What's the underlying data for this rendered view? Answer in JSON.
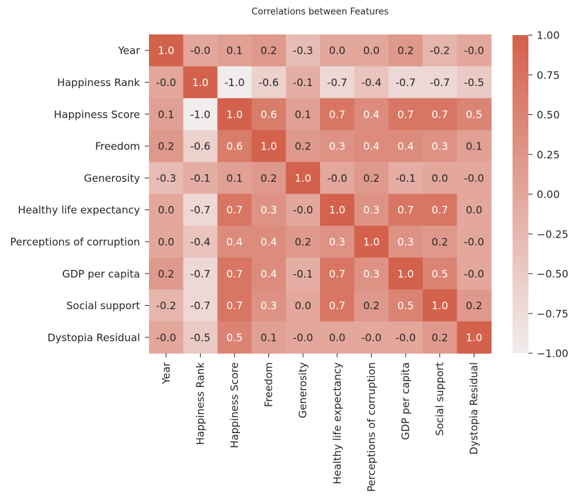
{
  "chart_data": {
    "type": "heatmap",
    "title": "Correlations between Features",
    "rows": [
      "Year",
      "Happiness Rank",
      "Happiness Score",
      "Freedom",
      "Generosity",
      "Healthy life expectancy",
      "Perceptions of corruption",
      "GDP per capita",
      "Social support",
      "Dystopia Residual"
    ],
    "columns": [
      "Year",
      "Happiness Rank",
      "Happiness Score",
      "Freedom",
      "Generosity",
      "Healthy life expectancy",
      "Perceptions of corruption",
      "GDP per capita",
      "Social support",
      "Dystopia Residual"
    ],
    "values": [
      [
        1.0,
        -0.0,
        0.1,
        0.2,
        -0.3,
        0.0,
        0.0,
        0.2,
        -0.2,
        -0.0
      ],
      [
        -0.0,
        1.0,
        -1.0,
        -0.6,
        -0.1,
        -0.7,
        -0.4,
        -0.7,
        -0.7,
        -0.5
      ],
      [
        0.1,
        -1.0,
        1.0,
        0.6,
        0.1,
        0.7,
        0.4,
        0.7,
        0.7,
        0.5
      ],
      [
        0.2,
        -0.6,
        0.6,
        1.0,
        0.2,
        0.3,
        0.4,
        0.4,
        0.3,
        0.1
      ],
      [
        -0.3,
        -0.1,
        0.1,
        0.2,
        1.0,
        -0.0,
        0.2,
        -0.1,
        0.0,
        -0.0
      ],
      [
        0.0,
        -0.7,
        0.7,
        0.3,
        -0.0,
        1.0,
        0.3,
        0.7,
        0.7,
        0.0
      ],
      [
        0.0,
        -0.4,
        0.4,
        0.4,
        0.2,
        0.3,
        1.0,
        0.3,
        0.2,
        -0.0
      ],
      [
        0.2,
        -0.7,
        0.7,
        0.4,
        -0.1,
        0.7,
        0.3,
        1.0,
        0.5,
        -0.0
      ],
      [
        -0.2,
        -0.7,
        0.7,
        0.3,
        0.0,
        0.7,
        0.2,
        0.5,
        1.0,
        0.2
      ],
      [
        -0.0,
        -0.5,
        0.5,
        0.1,
        -0.0,
        0.0,
        -0.0,
        -0.0,
        0.2,
        1.0
      ]
    ],
    "labels": [
      [
        "1.0",
        "-0.0",
        "0.1",
        "0.2",
        "-0.3",
        "0.0",
        "0.0",
        "0.2",
        "-0.2",
        "-0.0"
      ],
      [
        "-0.0",
        "1.0",
        "-1.0",
        "-0.6",
        "-0.1",
        "-0.7",
        "-0.4",
        "-0.7",
        "-0.7",
        "-0.5"
      ],
      [
        "0.1",
        "-1.0",
        "1.0",
        "0.6",
        "0.1",
        "0.7",
        "0.4",
        "0.7",
        "0.7",
        "0.5"
      ],
      [
        "0.2",
        "-0.6",
        "0.6",
        "1.0",
        "0.2",
        "0.3",
        "0.4",
        "0.4",
        "0.3",
        "0.1"
      ],
      [
        "-0.3",
        "-0.1",
        "0.1",
        "0.2",
        "1.0",
        "-0.0",
        "0.2",
        "-0.1",
        "0.0",
        "-0.0"
      ],
      [
        "0.0",
        "-0.7",
        "0.7",
        "0.3",
        "-0.0",
        "1.0",
        "0.3",
        "0.7",
        "0.7",
        "0.0"
      ],
      [
        "0.0",
        "-0.4",
        "0.4",
        "0.4",
        "0.2",
        "0.3",
        "1.0",
        "0.3",
        "0.2",
        "-0.0"
      ],
      [
        "0.2",
        "-0.7",
        "0.7",
        "0.4",
        "-0.1",
        "0.7",
        "0.3",
        "1.0",
        "0.5",
        "-0.0"
      ],
      [
        "-0.2",
        "-0.7",
        "0.7",
        "0.3",
        "0.0",
        "0.7",
        "0.2",
        "0.5",
        "1.0",
        "0.2"
      ],
      [
        "-0.0",
        "-0.5",
        "0.5",
        "0.1",
        "-0.0",
        "0.0",
        "-0.0",
        "-0.0",
        "0.2",
        "1.0"
      ]
    ],
    "vmin": -1.0,
    "vmax": 1.0,
    "colorbar_ticks": [
      1.0,
      0.75,
      0.5,
      0.25,
      0.0,
      -0.25,
      -0.5,
      -0.75,
      -1.0
    ],
    "colorbar_tick_labels": [
      "1.00",
      "0.75",
      "0.50",
      "0.25",
      "0.00",
      "−0.25",
      "−0.50",
      "−0.75",
      "−1.00"
    ],
    "colormap": {
      "low": "#f2eded",
      "high": "#d3614b"
    },
    "annotation_colors": {
      "dark": "#262626",
      "light": "#ffffff"
    }
  }
}
